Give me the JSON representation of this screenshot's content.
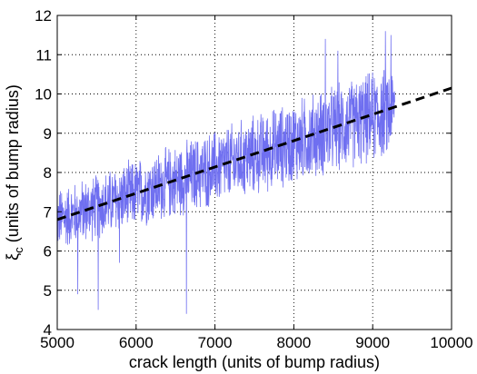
{
  "chart_data": {
    "type": "line",
    "xlabel": "crack length (units of bump radius)",
    "ylabel_main": "ξ",
    "ylabel_sub": "c",
    "ylabel_rest": " (units of bump radius)",
    "xlim": [
      5000,
      10000
    ],
    "ylim": [
      4,
      12
    ],
    "xticks": [
      "5000",
      "6000",
      "7000",
      "8000",
      "9000",
      "10000"
    ],
    "yticks": [
      "4",
      "5",
      "6",
      "7",
      "8",
      "9",
      "10",
      "11",
      "12"
    ],
    "grid": true,
    "series": [
      {
        "style": "noisy-line",
        "color": "#6f6ff0",
        "x_range": [
          5000,
          9280
        ],
        "trend_start": 6.8,
        "trend_end": 9.6,
        "noise_amplitude_start": 0.8,
        "noise_amplitude_end": 1.2,
        "extremes": [
          {
            "x": 5260,
            "y": 4.9
          },
          {
            "x": 5520,
            "y": 4.5
          },
          {
            "x": 5790,
            "y": 5.7
          },
          {
            "x": 6640,
            "y": 4.4
          },
          {
            "x": 8400,
            "y": 11.4
          },
          {
            "x": 8560,
            "y": 11.1
          },
          {
            "x": 9160,
            "y": 11.6
          },
          {
            "x": 9230,
            "y": 11.5
          },
          {
            "x": 9270,
            "y": 9.4
          }
        ]
      },
      {
        "style": "dashed-fit",
        "color": "#000000",
        "x": [
          5000,
          10000
        ],
        "y": [
          6.8,
          10.15
        ]
      }
    ]
  }
}
